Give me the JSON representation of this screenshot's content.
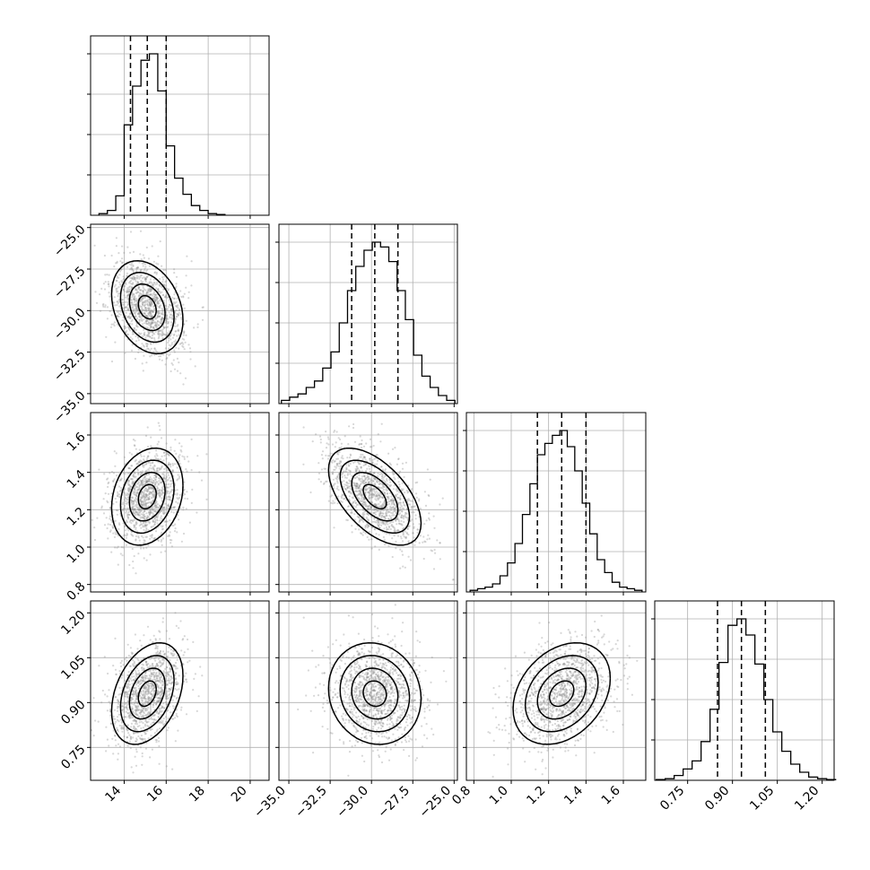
{
  "chart_data": {
    "type": "corner",
    "xlabel": "",
    "ylabel": "",
    "title": "",
    "parameters": [
      {
        "range": [
          12.4,
          20.9
        ],
        "ticks": [
          14,
          16,
          18,
          20
        ],
        "tick_labels": [
          "14",
          "16",
          "18",
          "20"
        ]
      },
      {
        "range": [
          -35.6,
          -24.8
        ],
        "ticks": [
          -35.0,
          -32.5,
          -30.0,
          -27.5,
          -25.0
        ],
        "tick_labels": [
          "−35.0",
          "−32.5",
          "−30.0",
          "−27.5",
          "−25.0"
        ]
      },
      {
        "range": [
          0.76,
          1.72
        ],
        "ticks": [
          0.8,
          1.0,
          1.2,
          1.4,
          1.6
        ],
        "tick_labels": [
          "0.8",
          "1.0",
          "1.2",
          "1.4",
          "1.6"
        ]
      },
      {
        "range": [
          0.64,
          1.24
        ],
        "ticks": [
          0.75,
          0.9,
          1.05,
          1.2
        ],
        "tick_labels": [
          "0.75",
          "0.90",
          "1.05",
          "1.20"
        ]
      }
    ],
    "quantiles": [
      [
        14.3,
        15.1,
        16.0
      ],
      [
        -31.2,
        -29.8,
        -28.4
      ],
      [
        1.14,
        1.27,
        1.4
      ],
      [
        0.85,
        0.93,
        1.01
      ]
    ],
    "histograms": [
      {
        "bin_centers": [
          13.0,
          13.4,
          13.8,
          14.2,
          14.6,
          15.0,
          15.4,
          15.8,
          16.2,
          16.6,
          17.0,
          17.4,
          17.8,
          18.2,
          18.6
        ],
        "counts": [
          0.01,
          0.03,
          0.12,
          0.56,
          0.8,
          0.96,
          1.0,
          0.77,
          0.43,
          0.23,
          0.13,
          0.06,
          0.03,
          0.01,
          0.005
        ]
      },
      {
        "bin_centers": [
          -35.2,
          -34.7,
          -34.2,
          -33.7,
          -33.2,
          -32.7,
          -32.2,
          -31.7,
          -31.2,
          -30.7,
          -30.2,
          -29.7,
          -29.2,
          -28.7,
          -28.2,
          -27.7,
          -27.2,
          -26.7,
          -26.2,
          -25.7,
          -25.2
        ],
        "counts": [
          0.02,
          0.04,
          0.06,
          0.1,
          0.14,
          0.22,
          0.32,
          0.5,
          0.7,
          0.85,
          0.95,
          1.0,
          0.97,
          0.88,
          0.7,
          0.52,
          0.3,
          0.17,
          0.1,
          0.05,
          0.02
        ]
      },
      {
        "bin_centers": [
          0.8,
          0.84,
          0.88,
          0.92,
          0.96,
          1.0,
          1.04,
          1.08,
          1.12,
          1.16,
          1.2,
          1.24,
          1.28,
          1.32,
          1.36,
          1.4,
          1.44,
          1.48,
          1.52,
          1.56,
          1.6,
          1.64,
          1.68
        ],
        "counts": [
          0.01,
          0.02,
          0.03,
          0.05,
          0.1,
          0.18,
          0.3,
          0.48,
          0.67,
          0.85,
          0.92,
          0.97,
          1.0,
          0.9,
          0.75,
          0.55,
          0.36,
          0.2,
          0.12,
          0.06,
          0.03,
          0.02,
          0.01
        ]
      },
      {
        "bin_centers": [
          0.66,
          0.69,
          0.72,
          0.75,
          0.78,
          0.81,
          0.84,
          0.87,
          0.9,
          0.93,
          0.96,
          0.99,
          1.02,
          1.05,
          1.08,
          1.11,
          1.14,
          1.17,
          1.2,
          1.23
        ],
        "counts": [
          0.005,
          0.01,
          0.03,
          0.07,
          0.12,
          0.24,
          0.44,
          0.73,
          0.96,
          1.0,
          0.9,
          0.72,
          0.5,
          0.3,
          0.18,
          0.1,
          0.05,
          0.02,
          0.01,
          0.005
        ]
      }
    ],
    "correlations": [
      [
        1.0,
        -0.28,
        0.23,
        0.35
      ],
      [
        -0.28,
        1.0,
        -0.55,
        -0.1
      ],
      [
        0.23,
        -0.55,
        1.0,
        0.3
      ],
      [
        0.35,
        -0.1,
        0.3,
        1.0
      ]
    ],
    "stds": [
      0.85,
      1.4,
      0.13,
      0.085
    ],
    "modes": [
      15.1,
      -29.8,
      1.27,
      0.93
    ],
    "contour_levels_sigma": [
      0.5,
      1.0,
      1.5,
      2.0
    ],
    "grid": true
  }
}
